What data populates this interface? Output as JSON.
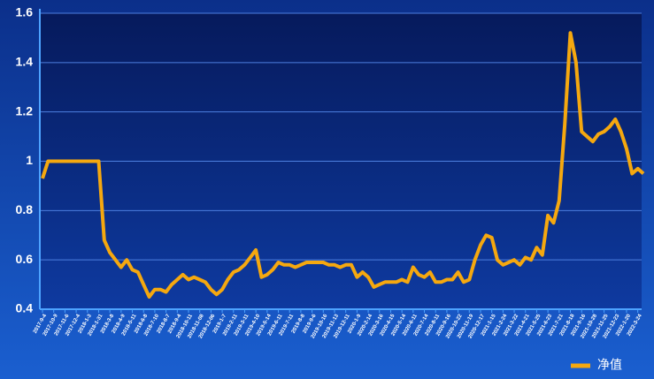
{
  "chart_data": {
    "type": "line",
    "categories": [
      "2017-9-4",
      null,
      "2017-10-9",
      null,
      "2017-11-6",
      null,
      "2017-12-4",
      null,
      "2018-1-3",
      null,
      "2018-1-31",
      null,
      "2018-3-8",
      null,
      "2018-4-9",
      null,
      "2018-5-11",
      null,
      "2018-6-8",
      null,
      "2018-7-10",
      null,
      "2018-8-7",
      null,
      "2018-9-4",
      null,
      "2018-10-11",
      null,
      "2018-11-08",
      null,
      "2018-12-06",
      null,
      "2019-1-7",
      null,
      "2019-2-11",
      null,
      "2019-3-11",
      null,
      "2019-4-10",
      null,
      "2019-5-14",
      null,
      "2019-6-11",
      null,
      "2019-7-11",
      null,
      "2019-8-8",
      null,
      "2019-9-6",
      null,
      "2019-10-16",
      null,
      "2019-11-13",
      null,
      "2019-12-11",
      null,
      "2020-1-9",
      null,
      "2020-2-14",
      null,
      "2020-3-16",
      null,
      "2020-4-15",
      null,
      "2020-5-14",
      null,
      "2020-6-11",
      null,
      "2020-7-14",
      null,
      "2020-8-11",
      null,
      "2020-9-16",
      null,
      "2020-10-22",
      null,
      "2020-11-19",
      null,
      "2020-12-17",
      null,
      "2021-1-15",
      null,
      "2021-2-24",
      null,
      "2021-3-22",
      null,
      "2021-4-21",
      null,
      "2021-5-25",
      null,
      "2021-6-23",
      null,
      "2021-7-21",
      null,
      "2021-8-18",
      null,
      "2021-9-16",
      null,
      "2021-10-28",
      null,
      "2021-11-25",
      null,
      "2021-12-23",
      null,
      "2022-1-20",
      null,
      "2022-3-24",
      null
    ],
    "series": [
      {
        "name": "净值",
        "color": "#f5a80f",
        "values": [
          0.93,
          1.0,
          1.0,
          1.0,
          1.0,
          1.0,
          1.0,
          1.0,
          1.0,
          1.0,
          1.0,
          0.68,
          0.63,
          0.6,
          0.57,
          0.6,
          0.56,
          0.55,
          0.5,
          0.45,
          0.48,
          0.48,
          0.47,
          0.5,
          0.52,
          0.54,
          0.52,
          0.53,
          0.52,
          0.51,
          0.48,
          0.46,
          0.48,
          0.52,
          0.55,
          0.56,
          0.58,
          0.61,
          0.64,
          0.53,
          0.54,
          0.56,
          0.59,
          0.58,
          0.58,
          0.57,
          0.58,
          0.59,
          0.59,
          0.59,
          0.59,
          0.58,
          0.58,
          0.57,
          0.58,
          0.58,
          0.53,
          0.55,
          0.53,
          0.49,
          0.5,
          0.51,
          0.51,
          0.51,
          0.52,
          0.51,
          0.57,
          0.54,
          0.53,
          0.55,
          0.51,
          0.51,
          0.52,
          0.52,
          0.55,
          0.51,
          0.52,
          0.6,
          0.66,
          0.7,
          0.69,
          0.6,
          0.58,
          0.59,
          0.6,
          0.58,
          0.61,
          0.6,
          0.65,
          0.62,
          0.78,
          0.75,
          0.84,
          1.15,
          1.52,
          1.4,
          1.12,
          1.1,
          1.08,
          1.11,
          1.12,
          1.14,
          1.17,
          1.12,
          1.05,
          0.95,
          0.97,
          0.95
        ]
      }
    ],
    "ylim": [
      0.4,
      1.6
    ],
    "yticks": [
      {
        "value": 0.4,
        "label": "0.4"
      },
      {
        "value": 0.6,
        "label": "0.6"
      },
      {
        "value": 0.8,
        "label": "0.8"
      },
      1,
      {
        "value": 1.2,
        "label": "1.2"
      },
      {
        "value": 1.4,
        "label": "1.4"
      },
      {
        "value": 1.6,
        "label": "1.6"
      }
    ],
    "grid": true,
    "legend": "bottom-right"
  }
}
